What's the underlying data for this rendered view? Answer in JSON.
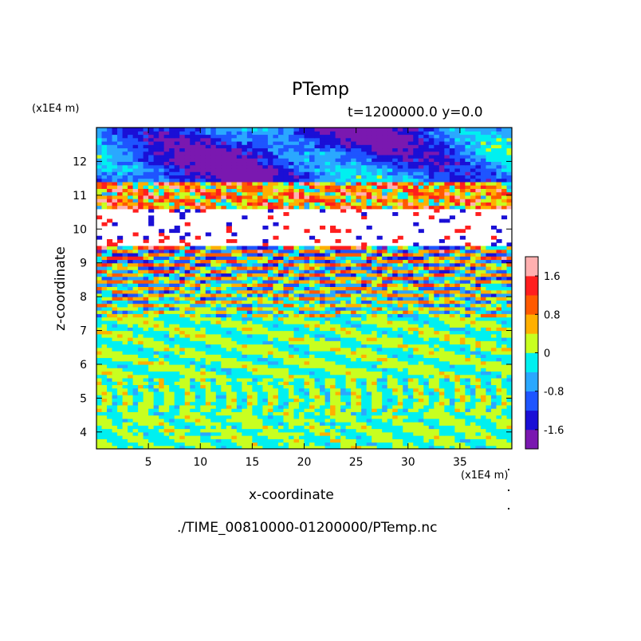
{
  "chart_data": {
    "type": "heatmap",
    "title": "PTemp",
    "subtitle": "t=1200000.0 y=0.0",
    "xlabel": "x-coordinate",
    "ylabel": "z-coordinate",
    "x_unit": "(x1E4 m)",
    "z_unit": "(x1E4 m)",
    "xlim": [
      0,
      40
    ],
    "ylim": [
      3.5,
      13
    ],
    "x_ticks": [
      5,
      10,
      15,
      20,
      25,
      30,
      35
    ],
    "y_ticks": [
      4,
      5,
      6,
      7,
      8,
      9,
      10,
      11,
      12
    ],
    "colorbar": {
      "labels": [
        "1.6",
        "0.8",
        "0",
        "-0.8",
        "-1.6"
      ],
      "label_values": [
        1.6,
        0.8,
        0,
        -0.8,
        -1.6
      ],
      "range": [
        -2.0,
        2.0
      ],
      "colors": [
        "#7a18b0",
        "#1a0fd6",
        "#1e55ff",
        "#2aa8ff",
        "#00f0f0",
        "#c8ff20",
        "#ffb000",
        "#ff5a00",
        "#ff1e1e",
        "#ffb0b0"
      ]
    },
    "field_layers": [
      {
        "z_range": [
          3.5,
          4.6
        ],
        "pattern": "cyan-yellow banded layers"
      },
      {
        "z_range": [
          4.6,
          5.6
        ],
        "pattern": "vertical cyan-yellow plumes"
      },
      {
        "z_range": [
          5.6,
          7.4
        ],
        "pattern": "cyan-yellow banded layers"
      },
      {
        "z_range": [
          7.4,
          9.5
        ],
        "pattern": "multicolored wave layers"
      },
      {
        "z_range": [
          9.5,
          10.6
        ],
        "pattern": "mostly white with thin streaks"
      },
      {
        "z_range": [
          10.6,
          11.4
        ],
        "pattern": "red-orange fronts"
      },
      {
        "z_range": [
          11.4,
          13.0
        ],
        "pattern": "blue-cyan upper layer"
      }
    ],
    "grid": false,
    "legend": "colorbar-right"
  },
  "footer": {
    "filepath": "./TIME_00810000-01200000/PTemp.nc"
  }
}
